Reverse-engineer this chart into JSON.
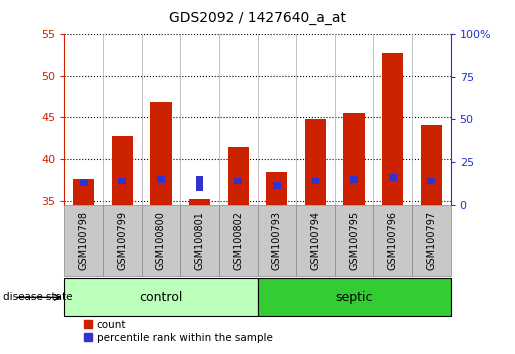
{
  "title": "GDS2092 / 1427640_a_at",
  "samples": [
    "GSM100798",
    "GSM100799",
    "GSM100800",
    "GSM100801",
    "GSM100802",
    "GSM100793",
    "GSM100794",
    "GSM100795",
    "GSM100796",
    "GSM100797"
  ],
  "groups": [
    "control",
    "control",
    "control",
    "control",
    "control",
    "septic",
    "septic",
    "septic",
    "septic",
    "septic"
  ],
  "count_values": [
    37.6,
    42.8,
    46.8,
    35.2,
    41.5,
    38.5,
    44.8,
    45.5,
    52.7,
    44.1
  ],
  "percentile_values_left": [
    36.8,
    37.0,
    37.2,
    36.2,
    37.0,
    36.5,
    37.0,
    37.2,
    37.4,
    37.0
  ],
  "percentile_heights": [
    0.8,
    0.8,
    0.8,
    1.8,
    0.8,
    0.8,
    0.8,
    0.8,
    0.8,
    0.8
  ],
  "baseline": 34.5,
  "ylim_left": [
    34.5,
    55
  ],
  "ylim_right": [
    0,
    100
  ],
  "yticks_left": [
    35,
    40,
    45,
    50,
    55
  ],
  "yticks_right": [
    0,
    25,
    50,
    75,
    100
  ],
  "ytick_labels_right": [
    "0",
    "25",
    "50",
    "75",
    "100%"
  ],
  "bar_color_red": "#CC2200",
  "bar_color_blue": "#3333CC",
  "control_light": "#BBFFBB",
  "control_dark": "#44DD44",
  "septic_color": "#33CC33",
  "sample_bg": "#C8C8C8",
  "left_tick_color": "#CC2200",
  "right_tick_color": "#2233CC",
  "bar_width": 0.55,
  "blue_bar_width": 0.2,
  "legend_labels": [
    "count",
    "percentile rank within the sample"
  ],
  "group_label": "disease state"
}
